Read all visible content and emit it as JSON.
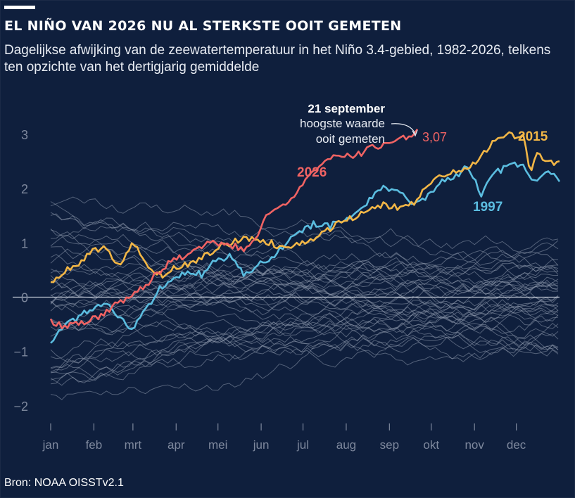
{
  "title": "EL NIÑO VAN 2026 NU AL STERKSTE OOIT GEMETEN",
  "subtitle": "Dagelijkse afwijking van de zeewatertemperatuur in het Niño 3.4-gebied, 1982-2026, telkens ten opzichte van het dertigjarig gemiddelde",
  "source": "Bron: NOAA OISSTv2.1",
  "colors": {
    "background": "#0f1f3d",
    "history": "#8d97ab",
    "y2026": "#f06363",
    "y2015": "#f2b646",
    "y1997": "#5bbde0",
    "axis": "#7e889d"
  },
  "chart_data": {
    "type": "line",
    "ylim": [
      -2.3,
      3.4
    ],
    "yticks": [
      -2,
      -1,
      0,
      1,
      2,
      3
    ],
    "ytick_labels": [
      "−2",
      "−1",
      "0",
      "1",
      "2",
      "3"
    ],
    "categories": [
      "jan",
      "feb",
      "mrt",
      "apr",
      "mei",
      "jun",
      "jul",
      "aug",
      "sep",
      "okt",
      "nov",
      "dec"
    ],
    "xlim": [
      1,
      366
    ],
    "grid": false,
    "highlight_series": [
      {
        "name": "2026",
        "color": "#f06363",
        "x": [
          1,
          10,
          20,
          30,
          40,
          50,
          60,
          70,
          80,
          90,
          100,
          110,
          120,
          130,
          140,
          150,
          155,
          160,
          170,
          180,
          190,
          200,
          210,
          220,
          230,
          240,
          250,
          255,
          260,
          264
        ],
        "values": [
          -0.45,
          -0.55,
          -0.5,
          -0.4,
          -0.3,
          -0.1,
          0.05,
          0.25,
          0.5,
          0.7,
          0.75,
          0.95,
          1.0,
          0.95,
          0.9,
          1.1,
          1.5,
          1.6,
          1.75,
          2.0,
          2.3,
          2.6,
          2.6,
          2.6,
          2.75,
          2.8,
          2.9,
          2.95,
          3.0,
          3.07
        ]
      },
      {
        "name": "2015",
        "color": "#f2b646",
        "x": [
          1,
          10,
          20,
          30,
          40,
          50,
          60,
          70,
          80,
          90,
          100,
          110,
          120,
          130,
          140,
          150,
          160,
          170,
          180,
          190,
          200,
          210,
          220,
          230,
          240,
          250,
          260,
          270,
          280,
          290,
          300,
          310,
          320,
          330,
          340,
          345,
          350,
          360,
          366
        ],
        "values": [
          0.3,
          0.45,
          0.6,
          0.85,
          0.9,
          0.6,
          1.0,
          0.6,
          0.4,
          0.55,
          0.6,
          0.75,
          0.9,
          1.0,
          1.1,
          1.05,
          1.0,
          0.85,
          1.0,
          1.1,
          1.25,
          1.4,
          1.5,
          1.6,
          1.7,
          1.65,
          1.7,
          2.0,
          2.2,
          2.3,
          2.35,
          2.6,
          2.9,
          3.0,
          2.95,
          2.3,
          2.6,
          2.5,
          2.45
        ]
      },
      {
        "name": "1997",
        "color": "#5bbde0",
        "x": [
          1,
          10,
          20,
          30,
          40,
          50,
          60,
          70,
          80,
          90,
          100,
          110,
          120,
          130,
          140,
          150,
          160,
          170,
          180,
          190,
          200,
          210,
          220,
          230,
          240,
          250,
          260,
          270,
          280,
          290,
          300,
          310,
          320,
          330,
          340,
          345,
          350,
          360,
          366
        ],
        "values": [
          -0.9,
          -0.5,
          -0.4,
          -0.2,
          -0.1,
          -0.4,
          -0.6,
          -0.2,
          0.2,
          0.3,
          0.5,
          0.4,
          0.7,
          0.75,
          0.4,
          0.6,
          0.7,
          1.0,
          1.2,
          1.35,
          1.3,
          1.4,
          1.55,
          1.8,
          2.0,
          2.0,
          1.7,
          1.8,
          2.1,
          2.2,
          2.4,
          1.9,
          2.3,
          2.4,
          2.5,
          2.2,
          2.2,
          2.3,
          2.15
        ]
      }
    ],
    "background_series_count": 41,
    "annotations": {
      "date": "21 september",
      "note_line1": "hoogste waarde",
      "note_line2": "ooit gemeten",
      "value": "3,07",
      "label_2026": "2026",
      "label_2015": "2015",
      "label_1997": "1997"
    }
  }
}
